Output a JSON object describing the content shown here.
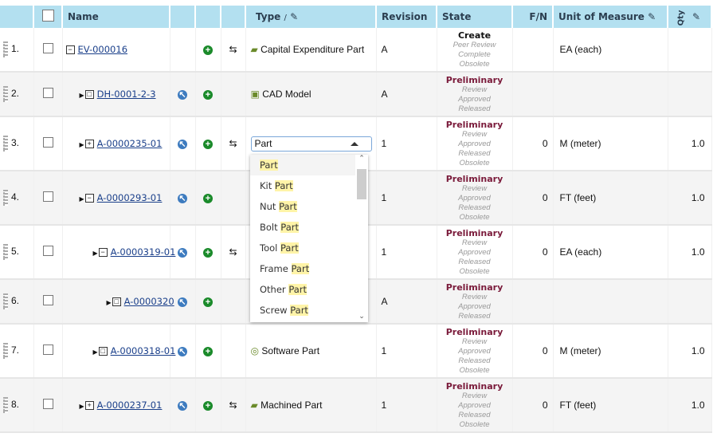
{
  "header": {
    "name": "Name",
    "type": "Type",
    "revision": "Revision",
    "state": "State",
    "fn": "F/N",
    "uom": "Unit of Measure",
    "qty": "Qty"
  },
  "rows": [
    {
      "n": "1.",
      "name": "EV-000016",
      "toggle": "−",
      "type": "Capital Expenditure Part",
      "rev": "A",
      "state": "Create",
      "substates": [
        "Peer Review",
        "Complete",
        "Obsolete"
      ],
      "fn": "",
      "uom": "EA (each)",
      "qty": ""
    },
    {
      "n": "2.",
      "name": "DH-0001-2-3",
      "toggle": "□",
      "type": "CAD Model",
      "rev": "A",
      "state": "Preliminary",
      "substates": [
        "Review",
        "Approved",
        "Released"
      ],
      "fn": "",
      "uom": "",
      "qty": ""
    },
    {
      "n": "3.",
      "name": "A-0000235-01",
      "toggle": "+",
      "type": "Part",
      "rev": "1",
      "state": "Preliminary",
      "substates": [
        "Review",
        "Approved",
        "Released",
        "Obsolete"
      ],
      "fn": "0",
      "uom": "M (meter)",
      "qty": "1.0"
    },
    {
      "n": "4.",
      "name": "A-0000293-01",
      "toggle": "−",
      "type": "",
      "rev": "1",
      "state": "Preliminary",
      "substates": [
        "Review",
        "Approved",
        "Released",
        "Obsolete"
      ],
      "fn": "0",
      "uom": "FT (feet)",
      "qty": "1.0"
    },
    {
      "n": "5.",
      "name": "A-0000319-01",
      "toggle": "−",
      "type": "",
      "rev": "1",
      "state": "Preliminary",
      "substates": [
        "Review",
        "Approved",
        "Released",
        "Obsolete"
      ],
      "fn": "0",
      "uom": "EA (each)",
      "qty": "1.0"
    },
    {
      "n": "6.",
      "name": "A-0000320",
      "toggle": "□",
      "type": "",
      "rev": "A",
      "state": "Preliminary",
      "substates": [
        "Review",
        "Approved",
        "Released"
      ],
      "fn": "",
      "uom": "",
      "qty": ""
    },
    {
      "n": "7.",
      "name": "A-0000318-01",
      "toggle": "□",
      "type": "Software Part",
      "rev": "1",
      "state": "Preliminary",
      "substates": [
        "Review",
        "Approved",
        "Released",
        "Obsolete"
      ],
      "fn": "0",
      "uom": "M (meter)",
      "qty": "1.0"
    },
    {
      "n": "8.",
      "name": "A-0000237-01",
      "toggle": "+",
      "type": "Machined Part",
      "rev": "1",
      "state": "Preliminary",
      "substates": [
        "Review",
        "Approved",
        "Released",
        "Obsolete"
      ],
      "fn": "0",
      "uom": "FT (feet)",
      "qty": "1.0"
    }
  ],
  "dropdown": {
    "selected": "Part",
    "options": [
      {
        "pre": "",
        "hl": "Part"
      },
      {
        "pre": "Kit ",
        "hl": "Part"
      },
      {
        "pre": "Nut ",
        "hl": "Part"
      },
      {
        "pre": "Bolt ",
        "hl": "Part"
      },
      {
        "pre": "Tool ",
        "hl": "Part"
      },
      {
        "pre": "Frame ",
        "hl": "Part"
      },
      {
        "pre": "Other ",
        "hl": "Part"
      },
      {
        "pre": "Screw ",
        "hl": "Part"
      }
    ]
  },
  "colors": {
    "header": "#b3e0f0",
    "preliminary": "#7a1a3a",
    "highlight": "#fff4a8",
    "link": "#1a3f8a"
  }
}
